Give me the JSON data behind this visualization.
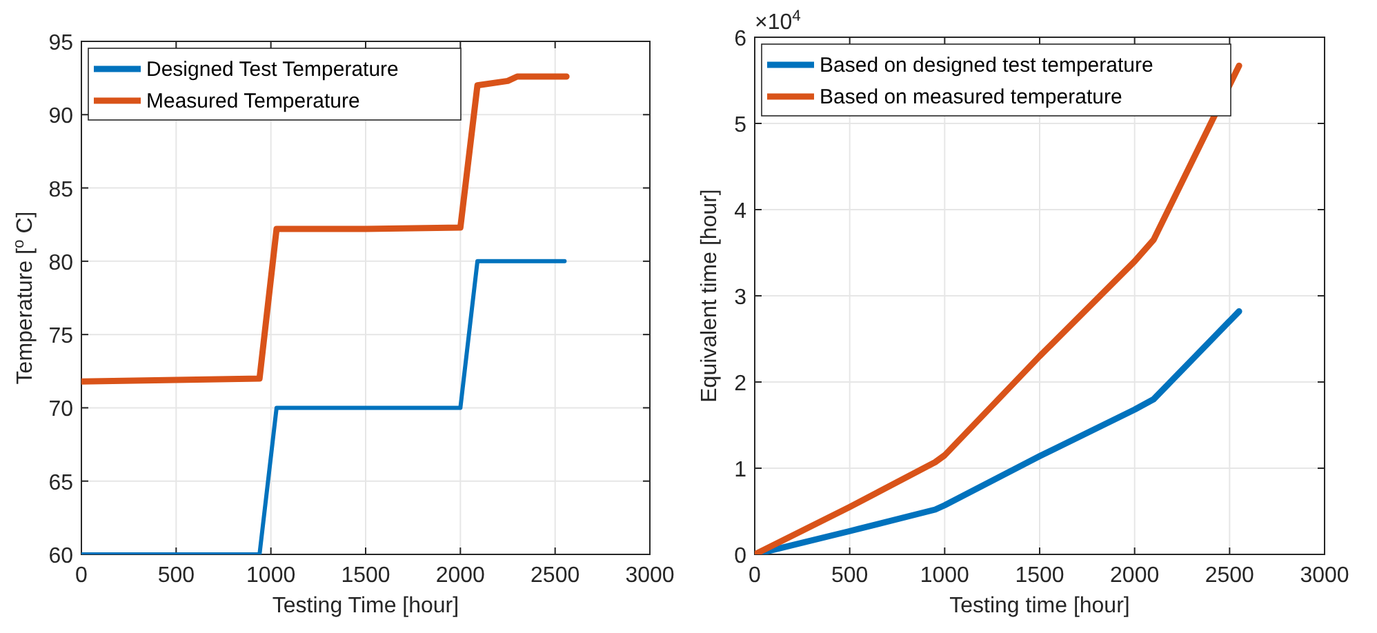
{
  "chart_data": [
    {
      "type": "line",
      "xlabel": "Testing Time [hour]",
      "ylabel": "Temperature [$^{o}$ C]",
      "xlim": [
        0,
        3000
      ],
      "xticks": [
        0,
        500,
        1000,
        1500,
        2000,
        2500,
        3000
      ],
      "ylim": [
        60,
        95
      ],
      "yticks": [
        60,
        65,
        70,
        75,
        80,
        85,
        90,
        95
      ],
      "grid": true,
      "legend": "top left",
      "series": [
        {
          "name": "Designed Test Temperature",
          "color": "#0072bd",
          "x": [
            0,
            940,
            1030,
            2000,
            2090,
            2550
          ],
          "values": [
            60,
            60,
            70,
            70,
            80,
            80
          ]
        },
        {
          "name": "Measured Temperature",
          "color": "#d95319",
          "x": [
            0,
            500,
            940,
            1030,
            1500,
            2000,
            2090,
            2250,
            2300,
            2560
          ],
          "values": [
            71.8,
            71.9,
            72,
            82.2,
            82.2,
            82.3,
            92,
            92.3,
            92.6,
            92.6
          ]
        }
      ]
    },
    {
      "type": "line",
      "xlabel": "Testing time [hour]",
      "ylabel": "Equivalent time [hour]",
      "annotations": [
        "×10$^{4}$"
      ],
      "xlim": [
        0,
        3000
      ],
      "xticks": [
        0,
        500,
        1000,
        1500,
        2000,
        2500,
        3000
      ],
      "ylim": [
        0,
        6
      ],
      "yticks": [
        0,
        1,
        2,
        3,
        4,
        5,
        6
      ],
      "grid": true,
      "legend": "top left",
      "series": [
        {
          "name": "Based on designed test temperature",
          "color": "#0072bd",
          "x": [
            0,
            500,
            950,
            1000,
            1500,
            2000,
            2100,
            2550
          ],
          "values": [
            0,
            0.27,
            0.52,
            0.57,
            1.14,
            1.68,
            1.8,
            2.82
          ]
        },
        {
          "name": "Based on measured temperature",
          "color": "#d95319",
          "x": [
            0,
            500,
            950,
            1000,
            1500,
            2000,
            2100,
            2550
          ],
          "values": [
            0,
            0.55,
            1.07,
            1.15,
            2.3,
            3.4,
            3.65,
            5.67
          ]
        }
      ]
    }
  ]
}
